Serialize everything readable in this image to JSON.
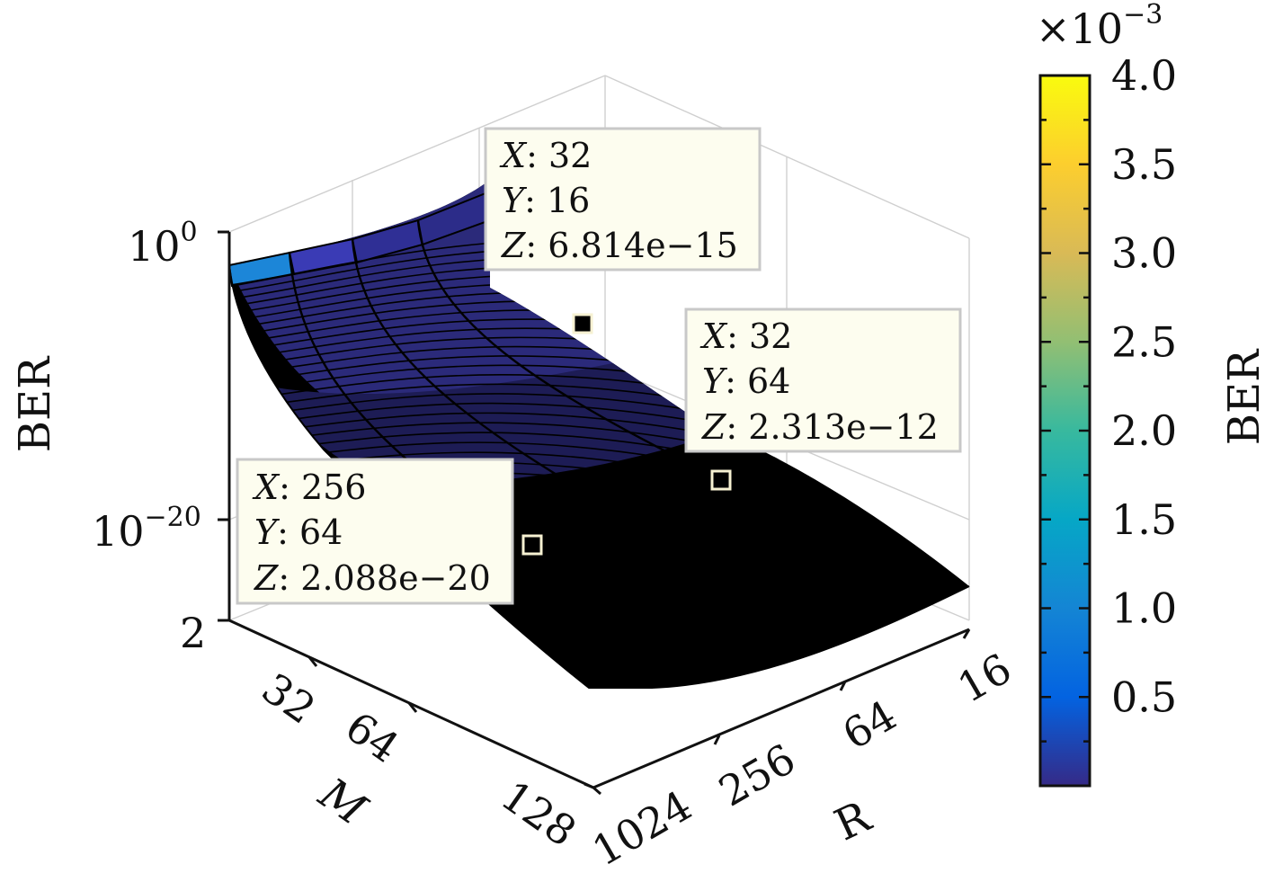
{
  "chart_data": {
    "type": "surface",
    "zlabel": "BER",
    "xlabel": "M",
    "ylabel": "R",
    "z_scale": "log",
    "z_ticks": [
      "10^0",
      "10^-20",
      "2"
    ],
    "x_ticks": [
      "32",
      "64",
      "128"
    ],
    "y_ticks": [
      "1024",
      "256",
      "64",
      "16"
    ],
    "colorbar": {
      "label": "BER",
      "exponent": "×10^-3",
      "range": [
        0,
        0.004
      ],
      "ticks": [
        "0.5",
        "1.0",
        "1.5",
        "2.0",
        "2.5",
        "3.0",
        "3.5",
        "4.0"
      ],
      "colormap": [
        "#352a87",
        "#0363e1",
        "#1485d4",
        "#06a7c6",
        "#38b99e",
        "#92bf73",
        "#d9ba56",
        "#fcce2e",
        "#f9fb0e"
      ]
    },
    "grid": true,
    "datatips": [
      {
        "x": "32",
        "y": "16",
        "z": "6.814e−15"
      },
      {
        "x": "32",
        "y": "64",
        "z": "2.313e−12"
      },
      {
        "x": "256",
        "y": "64",
        "z": "2.088e−20"
      }
    ],
    "tip_keys": {
      "x": "X",
      "y": "Y",
      "z": "Z"
    }
  }
}
